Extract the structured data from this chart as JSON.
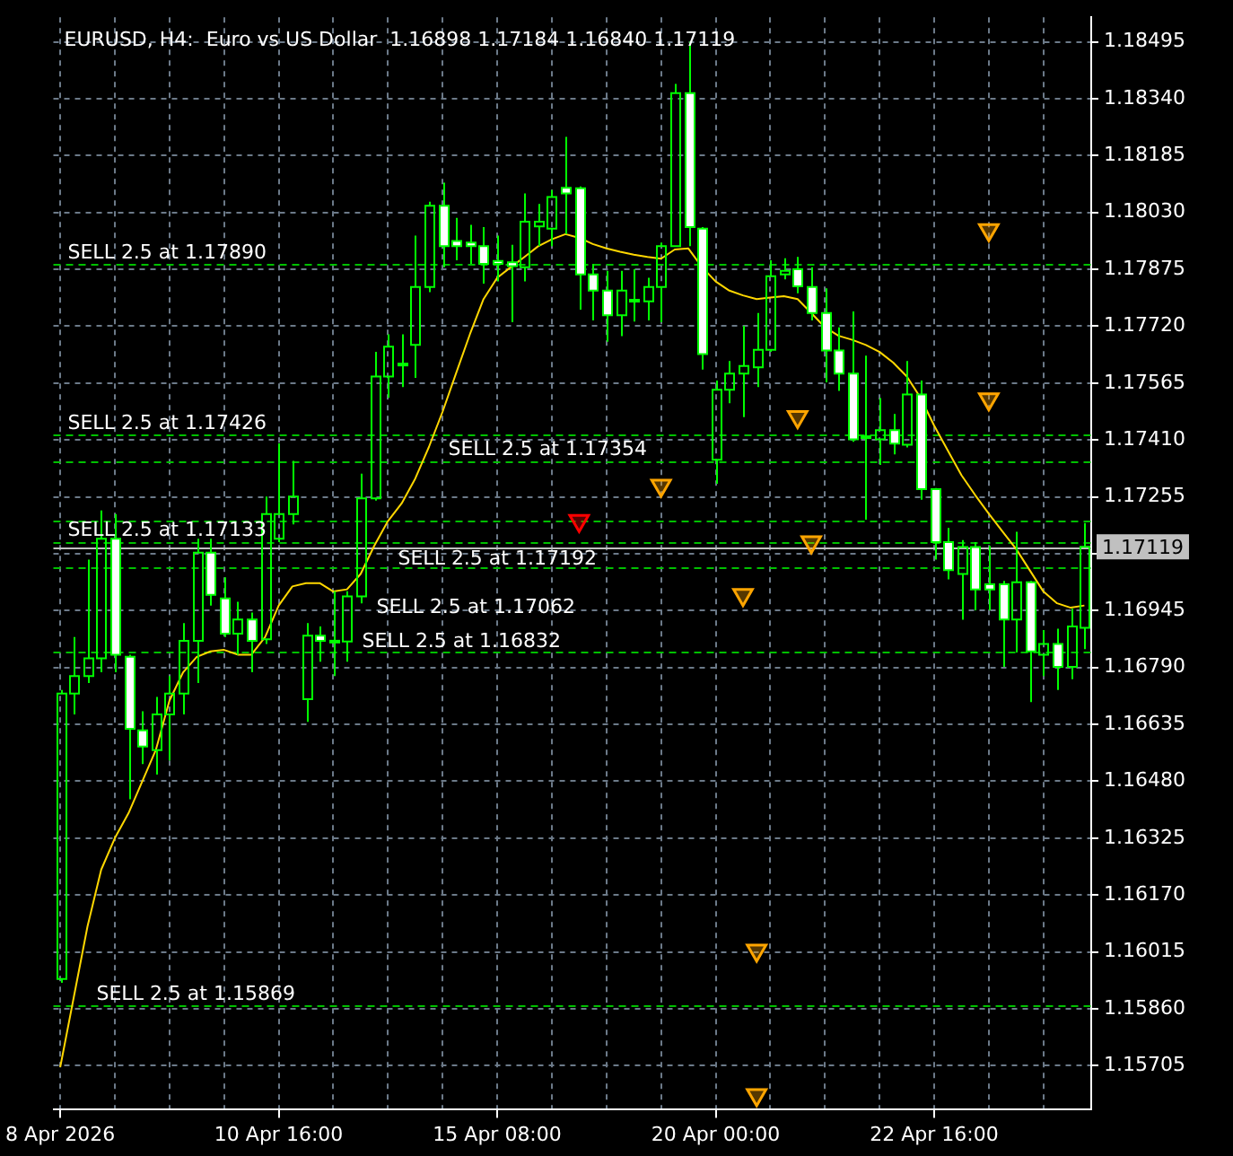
{
  "chart_data": {
    "type": "candlestick",
    "title": "EURUSD, H4:  Euro vs US Dollar  1.16898 1.17184 1.16840 1.17119",
    "categories": [
      "8 Apr 2026",
      null,
      null,
      null,
      null,
      null,
      null,
      null,
      null,
      null,
      null,
      null,
      null,
      null,
      null,
      null,
      "10 Apr 16:00",
      null,
      null,
      null,
      null,
      null,
      null,
      null,
      null,
      null,
      null,
      null,
      null,
      null,
      null,
      null,
      "15 Apr 08:00",
      null,
      null,
      null,
      null,
      null,
      null,
      null,
      null,
      null,
      null,
      null,
      null,
      null,
      null,
      null,
      "20 Apr 00:00",
      null,
      null,
      null,
      null,
      null,
      null,
      null,
      null,
      null,
      null,
      null,
      null,
      null,
      null,
      null,
      "22 Apr 16:00",
      null,
      null,
      null,
      null,
      null,
      null,
      null,
      null,
      null,
      null,
      null
    ],
    "ylim": [
      1.15587,
      1.18562
    ],
    "yticks": [
      1.15705,
      {
        "value": 1.1586,
        "label": "1.15860"
      },
      1.16015,
      {
        "value": 1.1617,
        "label": "1.16170"
      },
      1.16325,
      {
        "value": 1.1648,
        "label": "1.16480"
      },
      1.16635,
      {
        "value": 1.1679,
        "label": "1.16790"
      },
      1.16945,
      {
        "value": 1.171,
        "label": null
      },
      1.17255,
      {
        "value": 1.1741,
        "label": "1.17410"
      },
      1.17565,
      {
        "value": 1.1772,
        "label": "1.17720"
      },
      1.17875,
      {
        "value": 1.1803,
        "label": "1.18030"
      },
      1.18185,
      {
        "value": 1.1834,
        "label": "1.18340"
      },
      1.18495
    ],
    "grid": true,
    "series": [
      {
        "type": "candlestick",
        "color": "#00ff00",
        "colors": [
          "#00ff00",
          "#00ff00",
          "#00ff00",
          "#00ff00",
          "#ffffff",
          "#ffffff",
          "#ffffff",
          "#00ff00",
          "#00ff00",
          "#00ff00",
          "#00ff00",
          "#ffffff",
          "#ffffff",
          "#00ff00",
          "#ffffff",
          "#00ff00",
          "#00ff00",
          "#00ff00",
          "#00ff00",
          "#ffffff",
          "#ffffff",
          "#00ff00",
          "#00ff00",
          "#00ff00",
          "#00ff00",
          "#ffffff",
          "#00ff00",
          "#00ff00",
          "#ffffff",
          "#ffffff",
          "#ffffff",
          "#ffffff",
          "#ffffff",
          "#ffffff",
          "#00ff00",
          "#00ff00",
          "#00ff00",
          "#ffffff",
          "#ffffff",
          "#ffffff",
          "#ffffff",
          "#00ff00",
          "#00ff00",
          "#00ff00",
          "#00ff00",
          "#00ff00",
          "#ffffff",
          "#ffffff",
          "#00ff00",
          "#00ff00",
          "#00ff00",
          "#00ff00",
          "#00ff00",
          "#00ff00",
          "#ffffff",
          "#ffffff",
          "#ffffff",
          "#ffffff",
          "#ffffff",
          "#ffffff",
          "#00ff00",
          "#ffffff",
          "#00ff00",
          "#ffffff",
          "#ffffff",
          "#ffffff",
          "#00ff00",
          "#ffffff",
          "#ffffff",
          "#ffffff",
          "#00ff00",
          "#ffffff",
          "#00ff00",
          "#ffffff",
          "#00ff00",
          "#00ff00"
        ],
        "ohlc": [
          [
            1.15941,
            1.16729,
            1.15931,
            1.16719
          ],
          [
            1.16719,
            1.16873,
            1.16662,
            1.16767
          ],
          [
            1.16767,
            1.17084,
            1.16748,
            1.16815
          ],
          [
            1.16815,
            1.17218,
            1.16777,
            1.17141
          ],
          [
            1.17141,
            1.17208,
            1.16777,
            1.16825
          ],
          [
            1.16819,
            1.16825,
            1.16431,
            1.16623
          ],
          [
            1.16619,
            1.16671,
            1.16527,
            1.16575
          ],
          [
            1.16565,
            1.1671,
            1.16498,
            1.16662
          ],
          [
            1.16662,
            1.16767,
            1.16537,
            1.16719
          ],
          [
            1.16719,
            1.16911,
            1.16662,
            1.16863
          ],
          [
            1.16863,
            1.17141,
            1.16748,
            1.17103
          ],
          [
            1.17103,
            1.17141,
            1.16959,
            1.16988
          ],
          [
            1.16978,
            1.17036,
            1.16873,
            1.16882
          ],
          [
            1.16882,
            1.16969,
            1.16825,
            1.16921
          ],
          [
            1.16921,
            1.1694,
            1.16777,
            1.16863
          ],
          [
            1.16867,
            1.17256,
            1.16854,
            1.17208
          ],
          [
            1.17141,
            1.17401,
            1.17132,
            1.17208
          ],
          [
            1.17208,
            1.17353,
            1.1718,
            1.17256
          ],
          [
            1.16704,
            1.16911,
            1.16642,
            1.16877
          ],
          [
            1.16877,
            1.16902,
            1.16806,
            1.16863
          ],
          [
            1.16863,
            1.16998,
            1.16767,
            1.16861
          ],
          [
            1.16861,
            1.16998,
            1.16806,
            1.16984
          ],
          [
            1.16984,
            1.17318,
            1.16965,
            1.17251
          ],
          [
            1.17251,
            1.1765,
            1.17245,
            1.17583
          ],
          [
            1.17583,
            1.17698,
            1.17525,
            1.17664
          ],
          [
            1.17618,
            1.17698,
            1.17554,
            1.17614
          ],
          [
            1.17669,
            1.17967,
            1.17579,
            1.17827
          ],
          [
            1.17827,
            1.18059,
            1.17813,
            1.18048
          ],
          [
            1.18048,
            1.18111,
            1.17881,
            1.17938
          ],
          [
            1.17952,
            1.18015,
            1.179,
            1.17938
          ],
          [
            1.17948,
            1.17996,
            1.1789,
            1.17938
          ],
          [
            1.17938,
            1.1799,
            1.17836,
            1.1789
          ],
          [
            1.17898,
            1.17967,
            1.17842,
            1.1789
          ],
          [
            1.17894,
            1.17942,
            1.17731,
            1.17884
          ],
          [
            1.17881,
            1.18082,
            1.17842,
            1.18005
          ],
          [
            1.17992,
            1.18053,
            1.17938,
            1.18005
          ],
          [
            1.17986,
            1.18091,
            1.17938,
            1.18072
          ],
          [
            1.18097,
            1.18236,
            1.17971,
            1.18082
          ],
          [
            1.18096,
            1.18101,
            1.17765,
            1.17861
          ],
          [
            1.17861,
            1.1789,
            1.17736,
            1.17817
          ],
          [
            1.17817,
            1.17871,
            1.17678,
            1.1775
          ],
          [
            1.1775,
            1.17871,
            1.17693,
            1.17817
          ],
          [
            1.17788,
            1.17875,
            1.17733,
            1.17792
          ],
          [
            1.17788,
            1.17852,
            1.17736,
            1.17827
          ],
          [
            1.17827,
            1.17948,
            1.17731,
            1.17938
          ],
          [
            1.17938,
            1.1838,
            1.17938,
            1.18355
          ],
          [
            1.18355,
            1.18495,
            1.17938,
            1.1799
          ],
          [
            1.17986,
            1.1799,
            1.17602,
            1.17644
          ],
          [
            1.17356,
            1.17572,
            1.17291,
            1.17547
          ],
          [
            1.17547,
            1.17625,
            1.1751,
            1.17591
          ],
          [
            1.17591,
            1.17721,
            1.17472,
            1.17612
          ],
          [
            1.17608,
            1.17756,
            1.17554,
            1.17656
          ],
          [
            1.17656,
            1.179,
            1.1765,
            1.17856
          ],
          [
            1.17861,
            1.17905,
            1.17848,
            1.17871
          ],
          [
            1.17875,
            1.17909,
            1.1781,
            1.17829
          ],
          [
            1.17827,
            1.17881,
            1.17736,
            1.17756
          ],
          [
            1.17756,
            1.17823,
            1.17567,
            1.17654
          ],
          [
            1.17654,
            1.17717,
            1.17544,
            1.17591
          ],
          [
            1.17591,
            1.1776,
            1.17405,
            1.17412
          ],
          [
            1.1742,
            1.1764,
            1.17193,
            1.17416
          ],
          [
            1.17412,
            1.17524,
            1.17342,
            1.17437
          ],
          [
            1.17437,
            1.17481,
            1.17371,
            1.174
          ],
          [
            1.17397,
            1.17625,
            1.1739,
            1.17534
          ],
          [
            1.17534,
            1.17572,
            1.17247,
            1.17276
          ],
          [
            1.17276,
            1.17279,
            1.17084,
            1.17132
          ],
          [
            1.17132,
            1.1717,
            1.1703,
            1.17055
          ],
          [
            1.17045,
            1.17137,
            1.1692,
            1.17118
          ],
          [
            1.17118,
            1.17132,
            1.16946,
            1.17003
          ],
          [
            1.17017,
            1.17122,
            1.16946,
            1.17003
          ],
          [
            1.17017,
            1.17026,
            1.16792,
            1.16921
          ],
          [
            1.16921,
            1.1716,
            1.16831,
            1.17022
          ],
          [
            1.17022,
            1.17026,
            1.16696,
            1.16834
          ],
          [
            1.16825,
            1.16892,
            1.16767,
            1.16854
          ],
          [
            1.16854,
            1.16896,
            1.16729,
            1.16792
          ],
          [
            1.16792,
            1.1695,
            1.16758,
            1.16902
          ],
          [
            1.16898,
            1.17184,
            1.1684,
            1.17119
          ]
        ]
      },
      {
        "type": "line",
        "color": "#ffd700",
        "marker": "none",
        "values": [
          1.15701,
          1.15893,
          1.16085,
          1.16239,
          1.16325,
          1.16393,
          1.16479,
          1.16565,
          1.167,
          1.16777,
          1.16819,
          1.16834,
          1.16838,
          1.16825,
          1.16825,
          1.16873,
          1.16959,
          1.17011,
          1.1702,
          1.1702,
          1.16997,
          1.17003,
          1.17045,
          1.17122,
          1.17189,
          1.17237,
          1.17305,
          1.17391,
          1.17487,
          1.17593,
          1.17698,
          1.17794,
          1.17852,
          1.17881,
          1.17909,
          1.17938,
          1.17957,
          1.17971,
          1.17961,
          1.17944,
          1.17932,
          1.17923,
          1.17915,
          1.17909,
          1.17904,
          1.17929,
          1.17932,
          1.17881,
          1.17842,
          1.17817,
          1.17804,
          1.17794,
          1.17798,
          1.17802,
          1.17794,
          1.17756,
          1.17717,
          1.17694,
          1.17683,
          1.17669,
          1.1765,
          1.17621,
          1.17583,
          1.17525,
          1.17449,
          1.17381,
          1.17314,
          1.1726,
          1.17209,
          1.17161,
          1.17113,
          1.17055,
          1.16997,
          1.16965,
          1.16953,
          1.16959
        ]
      },
      {
        "type": "scatter",
        "color": "#ffa500",
        "marker": "triangle",
        "values": [
          null,
          null,
          null,
          null,
          null,
          null,
          null,
          null,
          null,
          null,
          null,
          null,
          null,
          null,
          null,
          null,
          null,
          null,
          null,
          null,
          null,
          null,
          null,
          null,
          null,
          null,
          null,
          null,
          null,
          null,
          null,
          null,
          null,
          null,
          null,
          null,
          null,
          null,
          null,
          null,
          null,
          null,
          null,
          null,
          1.17286,
          null,
          null,
          null,
          null,
          null,
          1.16988,
          1.16019,
          null,
          null,
          1.17473,
          1.17132,
          null,
          null,
          null,
          null,
          null,
          null,
          null,
          null,
          null,
          null,
          null,
          null,
          1.17982,
          null,
          null,
          null,
          null,
          null,
          null,
          null
        ]
      },
      {
        "type": "scatter",
        "color": "#ffa500",
        "marker": "triangle",
        "values": [
          null,
          null,
          null,
          null,
          null,
          null,
          null,
          null,
          null,
          null,
          null,
          null,
          null,
          null,
          null,
          null,
          null,
          null,
          null,
          null,
          null,
          null,
          null,
          null,
          null,
          null,
          null,
          null,
          null,
          null,
          null,
          null,
          null,
          null,
          null,
          null,
          null,
          null,
          null,
          null,
          null,
          null,
          null,
          null,
          null,
          null,
          null,
          null,
          null,
          null,
          null,
          1.15625,
          null,
          null,
          null,
          null,
          null,
          null,
          null,
          null,
          null,
          null,
          null,
          null,
          null,
          null,
          null,
          null,
          1.17521,
          null,
          null,
          null,
          null,
          null,
          null,
          null
        ]
      },
      {
        "type": "scatter",
        "color": "#ff0000",
        "marker": "triangle",
        "values": [
          null,
          null,
          null,
          null,
          null,
          null,
          null,
          null,
          null,
          null,
          null,
          null,
          null,
          null,
          null,
          null,
          null,
          null,
          null,
          null,
          null,
          null,
          null,
          null,
          null,
          null,
          null,
          null,
          null,
          null,
          null,
          null,
          null,
          null,
          null,
          null,
          null,
          null,
          1.1719,
          null,
          null,
          null,
          null,
          null,
          null,
          null,
          null,
          null,
          null,
          null,
          null,
          null,
          null,
          null,
          null,
          null,
          null,
          null,
          null,
          null,
          null,
          null,
          null,
          null,
          null,
          null,
          null,
          null,
          null,
          null,
          null,
          null,
          null,
          null,
          null,
          null
        ]
      }
    ],
    "ref_lines": [
      {
        "axis": "y",
        "value": 1.1789,
        "label": "SELL 2.5 at 1.17890",
        "color": "#00c000",
        "line_style": "dashed"
      },
      {
        "axis": "y",
        "value": 1.17426,
        "label": "SELL 2.5 at 1.17426",
        "color": "#00c000",
        "line_style": "dashed"
      },
      {
        "axis": "y",
        "value": 1.17354,
        "label": "SELL 2.5 at 1.17354",
        "color": "#00c000",
        "line_style": "dashed"
      },
      {
        "axis": "y",
        "value": 1.17192,
        "label": "SELL 2.5 at 1.17192",
        "color": "#00c000",
        "line_style": "dashed"
      },
      {
        "axis": "y",
        "value": 1.17133,
        "label": "SELL 2.5 at 1.17133",
        "color": "#00c000",
        "line_style": "dashed"
      },
      {
        "axis": "y",
        "value": 1.17062,
        "label": "SELL 2.5 at 1.17062",
        "color": "#00c000",
        "line_style": "dashed"
      },
      {
        "axis": "y",
        "value": 1.16832,
        "label": "SELL 2.5 at 1.16832",
        "color": "#00c000",
        "line_style": "dashed"
      },
      {
        "axis": "y",
        "value": 1.15869,
        "label": "SELL 2.5 at 1.15869",
        "color": "#00c000",
        "line_style": "dashed"
      },
      {
        "axis": "y",
        "value": 1.17119,
        "label": "1.17119",
        "color": "#c0c0c0",
        "line_style": "solid"
      }
    ]
  }
}
